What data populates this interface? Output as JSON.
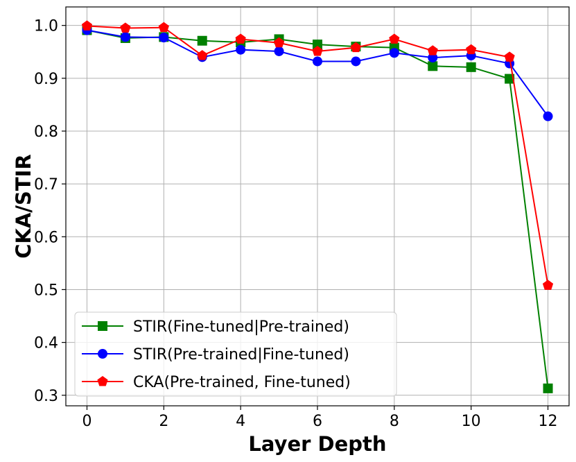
{
  "chart_data": {
    "type": "line",
    "title": "",
    "xlabel": "Layer Depth",
    "ylabel": "CKA/STIR",
    "xlim": [
      -0.55,
      12.55
    ],
    "ylim": [
      0.28,
      1.035
    ],
    "xticks": [
      0,
      2,
      4,
      6,
      8,
      10,
      12
    ],
    "xtick_labels": [
      "0",
      "2",
      "4",
      "6",
      "8",
      "10",
      "12"
    ],
    "yticks": [
      0.3,
      0.4,
      0.5,
      0.6,
      0.7,
      0.8,
      0.9,
      1.0
    ],
    "ytick_labels": [
      "0.3",
      "0.4",
      "0.5",
      "0.6",
      "0.7",
      "0.8",
      "0.9",
      "1.0"
    ],
    "grid": true,
    "legend_position": "bottom-left",
    "x": [
      0,
      1,
      2,
      3,
      4,
      5,
      6,
      7,
      8,
      9,
      10,
      11,
      12
    ],
    "series": [
      {
        "name": "STIR(Fine-tuned|Pre-trained)",
        "color": "#008000",
        "marker": "square",
        "values": [
          0.991,
          0.976,
          0.978,
          0.971,
          0.968,
          0.974,
          0.964,
          0.96,
          0.958,
          0.923,
          0.921,
          0.899,
          0.313
        ]
      },
      {
        "name": "STIR(Pre-trained|Fine-tuned)",
        "color": "#0000ff",
        "marker": "circle",
        "values": [
          0.991,
          0.978,
          0.977,
          0.94,
          0.954,
          0.951,
          0.932,
          0.932,
          0.948,
          0.939,
          0.943,
          0.928,
          0.828
        ]
      },
      {
        "name": "CKA(Pre-trained, Fine-tuned)",
        "color": "#ff0000",
        "marker": "pentagon",
        "values": [
          0.999,
          0.995,
          0.996,
          0.943,
          0.974,
          0.967,
          0.951,
          0.958,
          0.974,
          0.952,
          0.954,
          0.94,
          0.508
        ]
      }
    ]
  }
}
